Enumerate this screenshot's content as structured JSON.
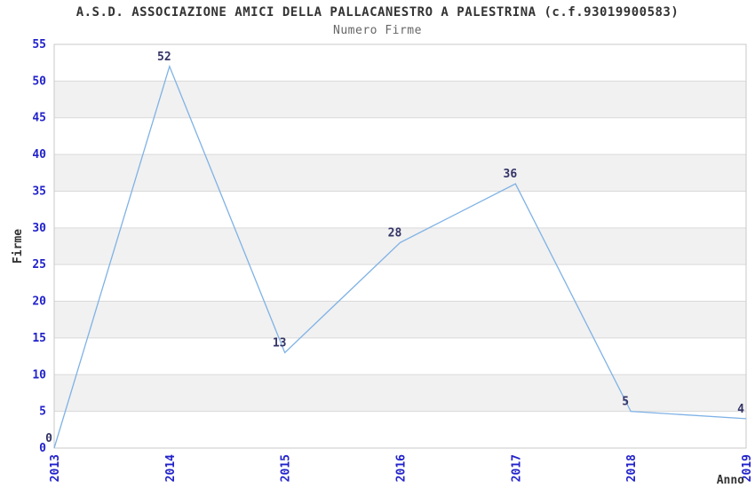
{
  "chart_data": {
    "type": "line",
    "title": "A.S.D. ASSOCIAZIONE AMICI DELLA PALLACANESTRO A PALESTRINA (c.f.93019900583)",
    "subtitle": "Numero Firme",
    "xlabel": "Anno",
    "ylabel": "Firme",
    "categories": [
      "2013",
      "2014",
      "2015",
      "2016",
      "2017",
      "2018",
      "2019"
    ],
    "series": [
      {
        "name": "Numero Firme",
        "values": [
          0,
          52,
          13,
          28,
          36,
          5,
          4
        ]
      }
    ],
    "ylim": [
      0,
      55
    ],
    "ytick_step": 5,
    "yticks": [
      0,
      5,
      10,
      15,
      20,
      25,
      30,
      35,
      40,
      45,
      50,
      55
    ],
    "grid": "horizontal",
    "banded_background": true,
    "data_labels_visible": true,
    "legend": "none",
    "x_tick_rotation": -90,
    "colors": {
      "line": "#7fb2e5",
      "tick_label": "#2222cc",
      "data_label": "#333366",
      "title": "#333333",
      "subtitle": "#666666",
      "axis_label": "#333333",
      "band": "#f1f1f1",
      "grid": "#d9d9d9",
      "border": "#c9c9c9",
      "background": "#ffffff"
    }
  }
}
